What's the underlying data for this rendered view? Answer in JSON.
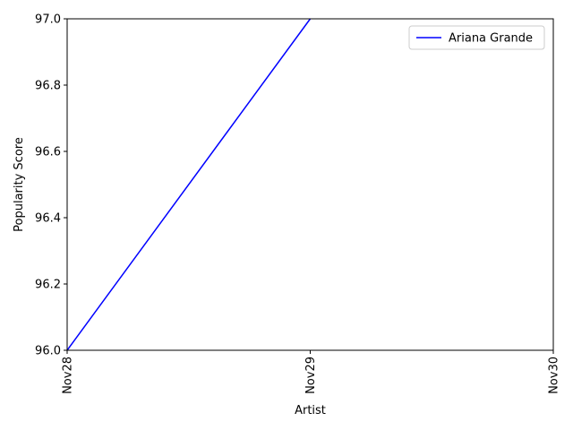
{
  "chart_data": {
    "type": "line",
    "title": "",
    "xlabel": "Artist",
    "ylabel": "Popularity Score",
    "x_ticks": [
      "Nov28",
      "Nov29",
      "Nov30"
    ],
    "ylim": [
      96.0,
      97.0
    ],
    "y_ticks": [
      "96.0",
      "96.2",
      "96.4",
      "96.6",
      "96.8",
      "97.0"
    ],
    "grid": false,
    "legend_position": "top-right",
    "series": [
      {
        "name": "Ariana Grande",
        "color": "#0000ff",
        "x": [
          "Nov28",
          "Nov29"
        ],
        "values": [
          96.0,
          97.0
        ]
      }
    ]
  }
}
